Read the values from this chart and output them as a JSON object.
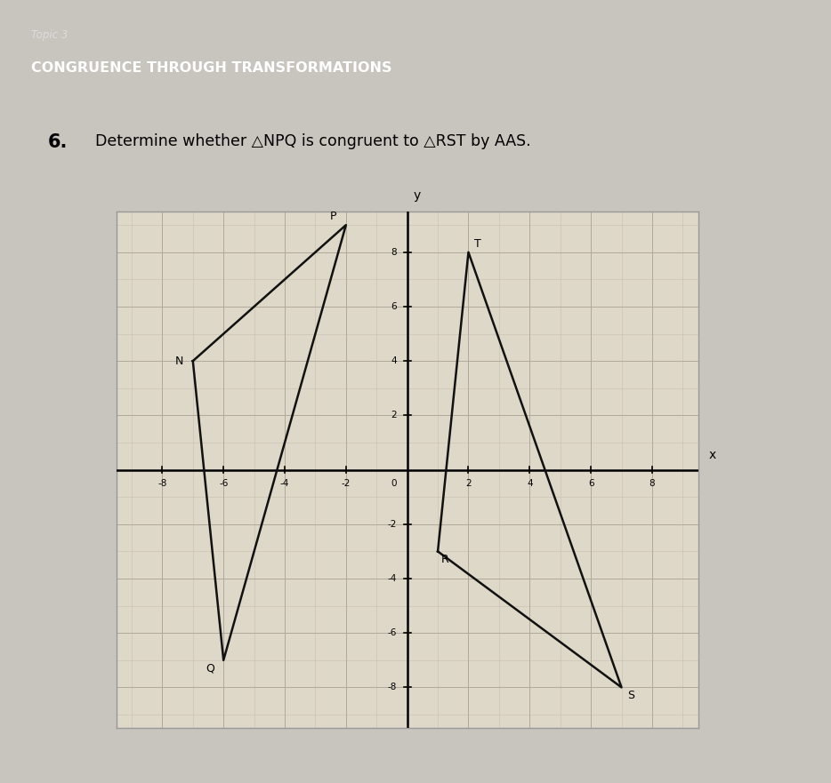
{
  "topic_label": "Topic 3",
  "topic_title": "CONGRUENCE THROUGH TRANSFORMATIONS",
  "problem_number": "6.",
  "problem_text": "Determine whether △NPQ is congruent to △RST by AAS.",
  "triangle_NPQ": {
    "N": [
      -7,
      4
    ],
    "P": [
      -2,
      9
    ],
    "Q": [
      -6,
      -7
    ]
  },
  "triangle_RST": {
    "R": [
      1,
      -3
    ],
    "S": [
      7,
      -8
    ],
    "T": [
      2,
      8
    ]
  },
  "axis_xlim": [
    -9.5,
    9.5
  ],
  "axis_ylim": [
    -9.5,
    9.5
  ],
  "xticks": [
    -8,
    -6,
    -4,
    -2,
    2,
    4,
    6,
    8
  ],
  "yticks": [
    -8,
    -6,
    -4,
    -2,
    2,
    4,
    6,
    8
  ],
  "grid_minor_color": "#c8bfaf",
  "grid_major_color": "#b0a898",
  "line_color": "#111111",
  "header_bg": "#555555",
  "header_topic_color": "#dddddd",
  "header_title_color": "#ffffff",
  "fig_bg": "#c8c4be",
  "plot_bg": "#ddd8c8",
  "plot_border": "#999999"
}
